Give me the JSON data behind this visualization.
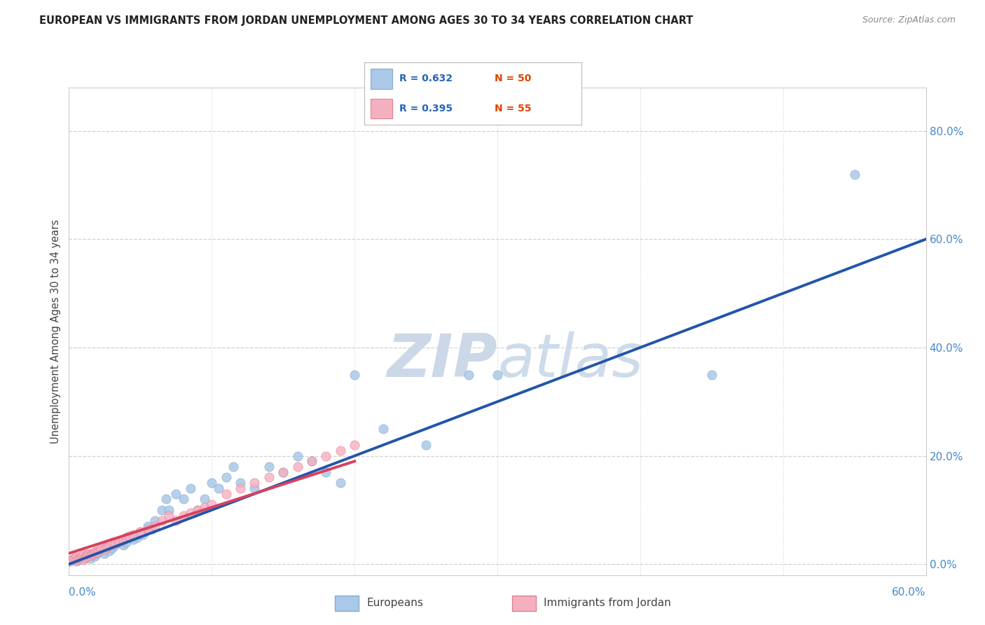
{
  "title": "EUROPEAN VS IMMIGRANTS FROM JORDAN UNEMPLOYMENT AMONG AGES 30 TO 34 YEARS CORRELATION CHART",
  "source": "Source: ZipAtlas.com",
  "ylabel": "Unemployment Among Ages 30 to 34 years",
  "y_tick_values": [
    0.0,
    0.2,
    0.4,
    0.6,
    0.8
  ],
  "x_lim": [
    0.0,
    0.6
  ],
  "y_lim": [
    -0.02,
    0.88
  ],
  "legend_european": "Europeans",
  "legend_jordan": "Immigrants from Jordan",
  "r_european": 0.632,
  "n_european": 50,
  "r_jordan": 0.395,
  "n_jordan": 55,
  "blue_color": "#aac8e8",
  "blue_edge_color": "#88aad0",
  "blue_line_color": "#2255aa",
  "pink_color": "#f5b0c0",
  "pink_edge_color": "#e08090",
  "pink_line_color": "#d94060",
  "grid_color": "#cccccc",
  "watermark_color": "#ccd8e8",
  "background_color": "#ffffff",
  "eu_line_x0": 0.0,
  "eu_line_y0": 0.0,
  "eu_line_x1": 0.5,
  "eu_line_y1": 0.5,
  "jo_line_x0": 0.0,
  "jo_line_y0": 0.02,
  "jo_line_x1": 0.2,
  "jo_line_y1": 0.19,
  "european_x": [
    0.005,
    0.008,
    0.012,
    0.015,
    0.018,
    0.02,
    0.022,
    0.025,
    0.025,
    0.028,
    0.03,
    0.032,
    0.035,
    0.038,
    0.04,
    0.042,
    0.045,
    0.048,
    0.05,
    0.052,
    0.055,
    0.058,
    0.06,
    0.065,
    0.068,
    0.07,
    0.075,
    0.08,
    0.085,
    0.09,
    0.095,
    0.1,
    0.105,
    0.11,
    0.115,
    0.12,
    0.13,
    0.14,
    0.15,
    0.16,
    0.17,
    0.18,
    0.19,
    0.2,
    0.22,
    0.25,
    0.28,
    0.3,
    0.45,
    0.55
  ],
  "european_y": [
    0.005,
    0.01,
    0.015,
    0.01,
    0.015,
    0.02,
    0.025,
    0.02,
    0.03,
    0.025,
    0.03,
    0.035,
    0.04,
    0.035,
    0.04,
    0.05,
    0.045,
    0.05,
    0.06,
    0.055,
    0.07,
    0.065,
    0.08,
    0.1,
    0.12,
    0.1,
    0.13,
    0.12,
    0.14,
    0.1,
    0.12,
    0.15,
    0.14,
    0.16,
    0.18,
    0.15,
    0.14,
    0.18,
    0.17,
    0.2,
    0.19,
    0.17,
    0.15,
    0.35,
    0.25,
    0.22,
    0.35,
    0.35,
    0.35,
    0.72
  ],
  "jordan_x": [
    0.001,
    0.002,
    0.003,
    0.004,
    0.005,
    0.006,
    0.007,
    0.008,
    0.009,
    0.01,
    0.01,
    0.011,
    0.012,
    0.013,
    0.014,
    0.015,
    0.016,
    0.017,
    0.018,
    0.019,
    0.02,
    0.021,
    0.022,
    0.023,
    0.025,
    0.027,
    0.028,
    0.03,
    0.032,
    0.035,
    0.038,
    0.04,
    0.042,
    0.045,
    0.05,
    0.055,
    0.06,
    0.065,
    0.07,
    0.075,
    0.08,
    0.085,
    0.09,
    0.095,
    0.1,
    0.11,
    0.12,
    0.13,
    0.14,
    0.15,
    0.16,
    0.17,
    0.18,
    0.19,
    0.2
  ],
  "jordan_y": [
    0.005,
    0.008,
    0.01,
    0.012,
    0.015,
    0.008,
    0.01,
    0.012,
    0.015,
    0.018,
    0.008,
    0.012,
    0.015,
    0.018,
    0.02,
    0.016,
    0.018,
    0.02,
    0.022,
    0.025,
    0.022,
    0.025,
    0.028,
    0.03,
    0.028,
    0.032,
    0.035,
    0.04,
    0.038,
    0.042,
    0.045,
    0.05,
    0.052,
    0.055,
    0.06,
    0.065,
    0.07,
    0.08,
    0.09,
    0.08,
    0.09,
    0.095,
    0.1,
    0.105,
    0.11,
    0.13,
    0.14,
    0.15,
    0.16,
    0.17,
    0.18,
    0.19,
    0.2,
    0.21,
    0.22
  ]
}
